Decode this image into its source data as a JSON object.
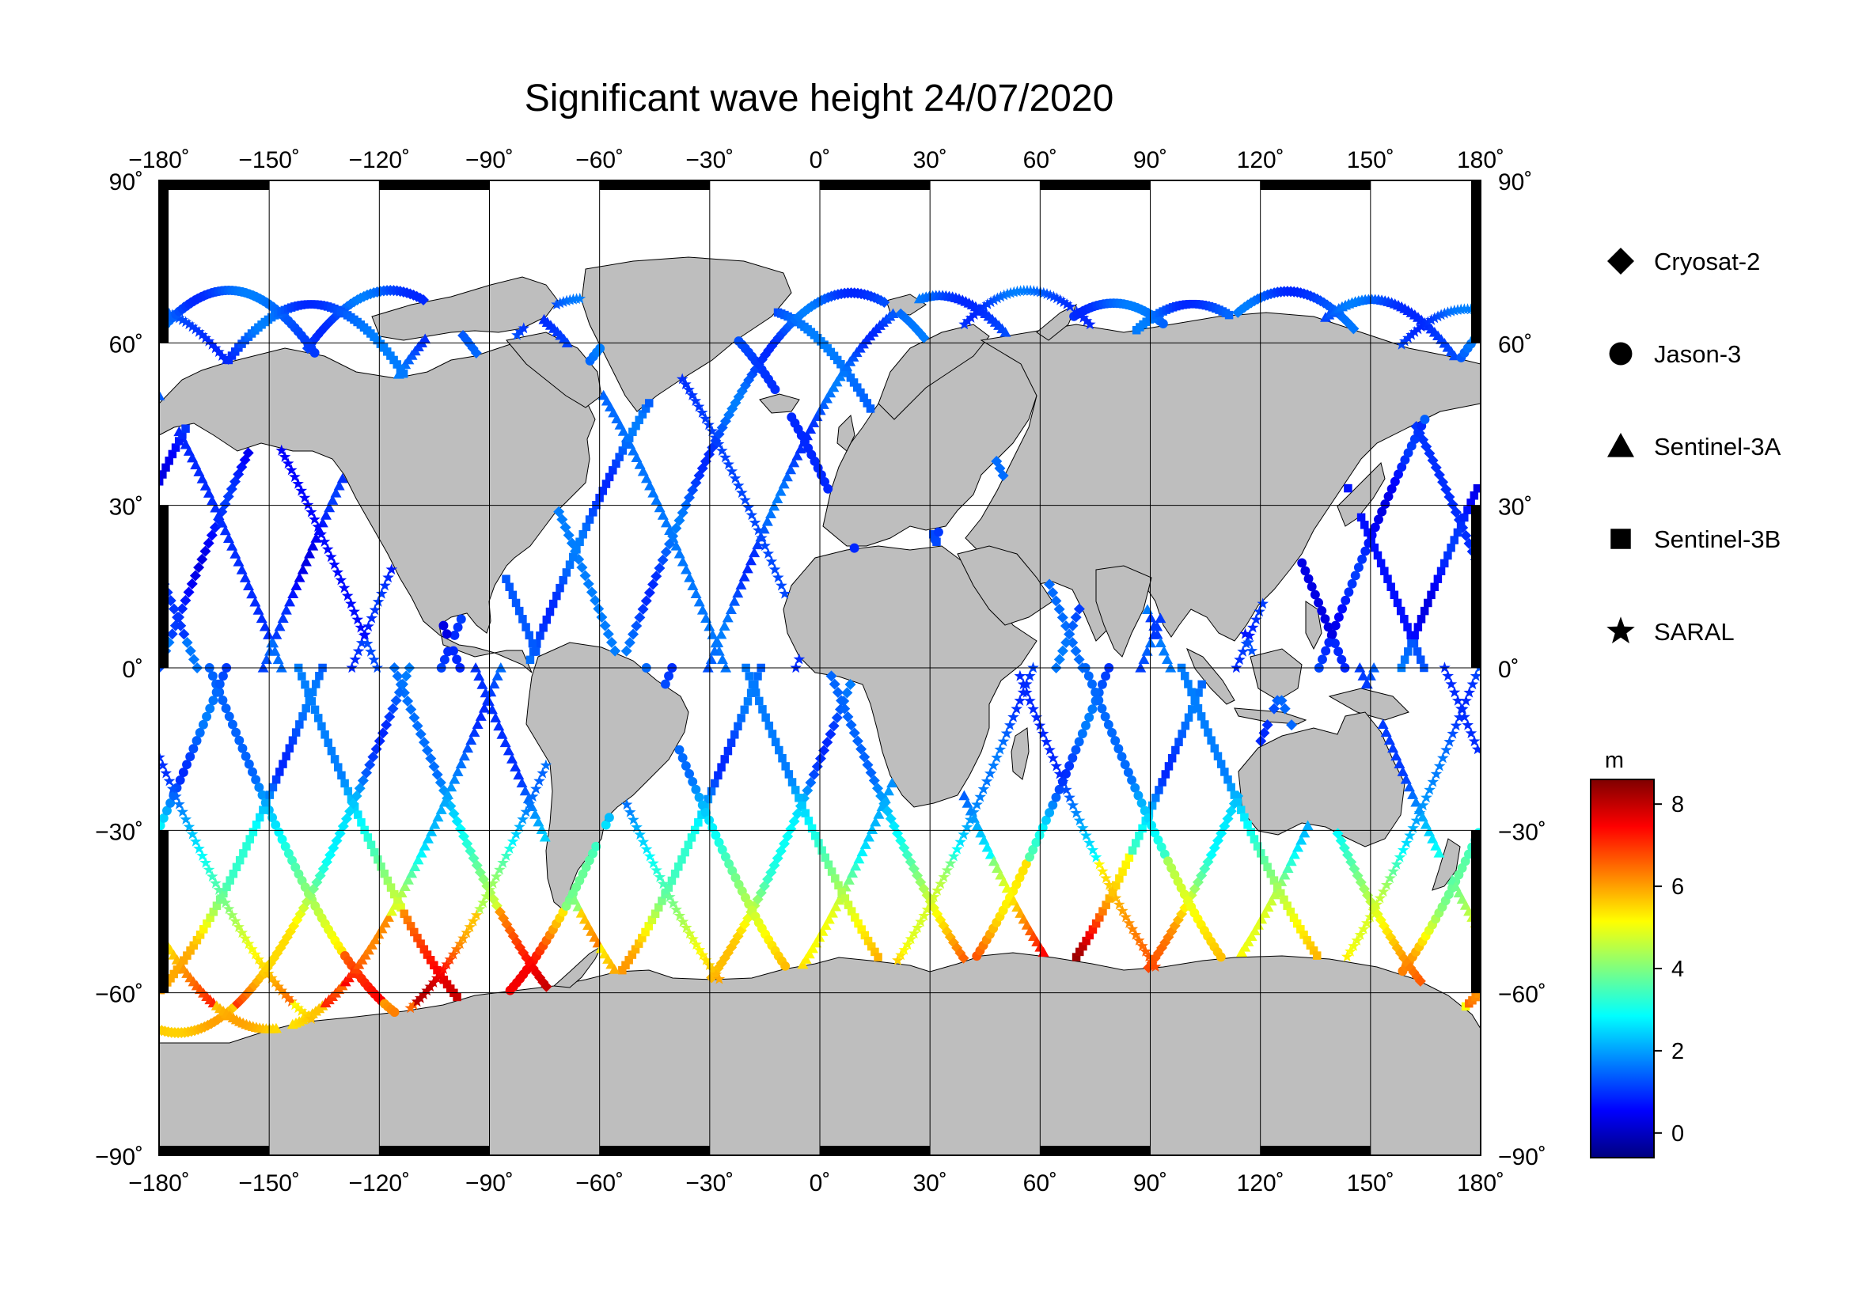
{
  "title": "Significant wave height 24/07/2020",
  "axes": {
    "lon_ticks": [
      {
        "value": -180,
        "label": "−180˚"
      },
      {
        "value": -150,
        "label": "−150˚"
      },
      {
        "value": -120,
        "label": "−120˚"
      },
      {
        "value": -90,
        "label": "−90˚"
      },
      {
        "value": -60,
        "label": "−60˚"
      },
      {
        "value": -30,
        "label": "−30˚"
      },
      {
        "value": 0,
        "label": "0˚"
      },
      {
        "value": 30,
        "label": "30˚"
      },
      {
        "value": 60,
        "label": "60˚"
      },
      {
        "value": 90,
        "label": "90˚"
      },
      {
        "value": 120,
        "label": "120˚"
      },
      {
        "value": 150,
        "label": "150˚"
      },
      {
        "value": 180,
        "label": "180˚"
      }
    ],
    "lat_ticks": [
      {
        "value": 90,
        "label": "90˚"
      },
      {
        "value": 60,
        "label": "60˚"
      },
      {
        "value": 30,
        "label": "30˚"
      },
      {
        "value": 0,
        "label": "0˚"
      },
      {
        "value": -30,
        "label": "−30˚"
      },
      {
        "value": -60,
        "label": "−60˚"
      },
      {
        "value": -90,
        "label": "−90˚"
      }
    ],
    "lon_range": [
      -180,
      180
    ],
    "lat_range": [
      -90,
      90
    ]
  },
  "legend": [
    {
      "symbol": "diamond",
      "label": "Cryosat-2"
    },
    {
      "symbol": "circle",
      "label": "Jason-3"
    },
    {
      "symbol": "triangle",
      "label": "Sentinel-3A"
    },
    {
      "symbol": "square",
      "label": "Sentinel-3B"
    },
    {
      "symbol": "star",
      "label": "SARAL"
    }
  ],
  "colorbar": {
    "unit": "m",
    "range": [
      -0.6,
      8.6
    ],
    "ticks": [
      {
        "value": 0,
        "label": "0"
      },
      {
        "value": 2,
        "label": "2"
      },
      {
        "value": 4,
        "label": "4"
      },
      {
        "value": 6,
        "label": "6"
      },
      {
        "value": 8,
        "label": "8"
      }
    ],
    "colors": [
      "#00007f",
      "#0000ff",
      "#007fff",
      "#00ffff",
      "#7fff7f",
      "#ffff00",
      "#ff7f00",
      "#ff0000",
      "#7f0000"
    ]
  },
  "colors": {
    "land": "#bebebe",
    "ocean": "#ffffff",
    "grid": "#000000"
  }
}
